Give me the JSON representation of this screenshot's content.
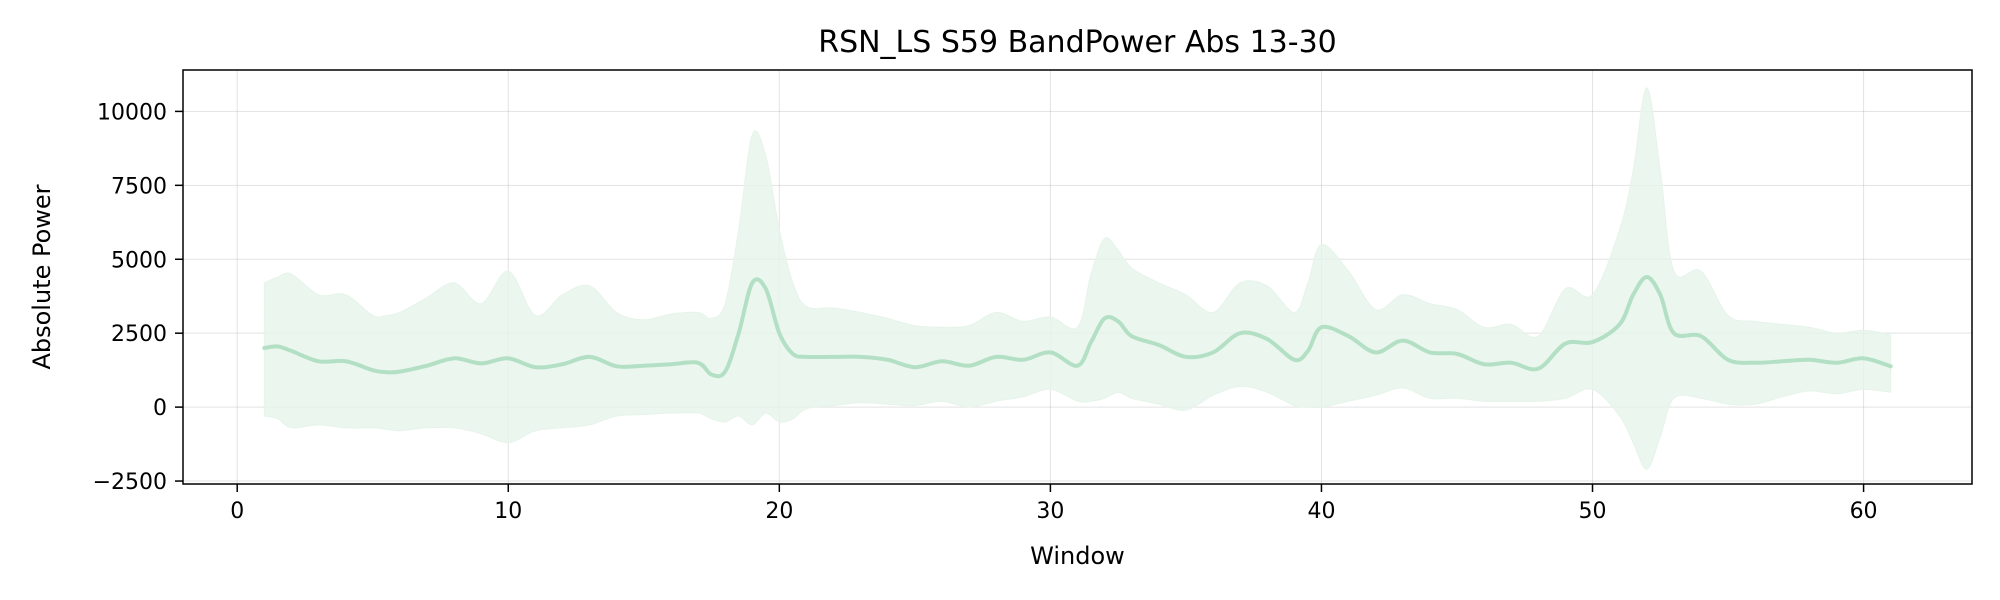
{
  "chart_data": {
    "type": "line",
    "title": "RSN_LS S59 BandPower Abs 13-30",
    "xlabel": "Window",
    "ylabel": "Absolute Power",
    "xlim": [
      -2,
      64
    ],
    "ylim": [
      -2600,
      11400
    ],
    "xticks": [
      0,
      10,
      20,
      30,
      40,
      50,
      60
    ],
    "xtick_labels": [
      "0",
      "10",
      "20",
      "30",
      "40",
      "50",
      "60"
    ],
    "yticks": [
      -2500,
      0,
      2500,
      5000,
      7500,
      10000
    ],
    "ytick_labels": [
      "−2500",
      "0",
      "2500",
      "5000",
      "7500",
      "10000"
    ],
    "grid": true,
    "series_color": "#b3e0c4",
    "band_color": "#e6f4ea",
    "series": [
      {
        "x": [
          1,
          1.5,
          2,
          3,
          4,
          5,
          5.5,
          6,
          7,
          8,
          9,
          10,
          11,
          12,
          13,
          14,
          15,
          16,
          17,
          17.5,
          18,
          18.5,
          19,
          19.5,
          20,
          20.5,
          21,
          22,
          23,
          24,
          25,
          26,
          27,
          28,
          29,
          30,
          31,
          31.5,
          32,
          32.5,
          33,
          34,
          35,
          36,
          37,
          38,
          39,
          39.5,
          40,
          41,
          42,
          43,
          44,
          45,
          46,
          47,
          48,
          49,
          50,
          51,
          51.5,
          52,
          52.5,
          53,
          54,
          55,
          56,
          57,
          58,
          59,
          60,
          61
        ],
        "mean": [
          2000,
          2050,
          1900,
          1550,
          1550,
          1250,
          1180,
          1200,
          1400,
          1650,
          1480,
          1650,
          1350,
          1450,
          1700,
          1380,
          1400,
          1450,
          1500,
          1100,
          1200,
          2500,
          4200,
          4000,
          2500,
          1800,
          1700,
          1700,
          1700,
          1600,
          1350,
          1550,
          1400,
          1700,
          1600,
          1850,
          1400,
          2200,
          3000,
          2900,
          2400,
          2100,
          1700,
          1850,
          2500,
          2300,
          1600,
          1900,
          2700,
          2400,
          1850,
          2250,
          1850,
          1800,
          1450,
          1500,
          1300,
          2150,
          2200,
          2800,
          3800,
          4400,
          3800,
          2500,
          2400,
          1600,
          1500,
          1550,
          1600,
          1500,
          1650,
          1380
        ],
        "upper": [
          4200,
          4400,
          4500,
          3800,
          3800,
          3100,
          3100,
          3200,
          3700,
          4200,
          3500,
          4600,
          3100,
          3800,
          4100,
          3200,
          2950,
          3150,
          3200,
          3000,
          3500,
          6000,
          9200,
          8500,
          6000,
          4200,
          3400,
          3350,
          3200,
          3000,
          2750,
          2700,
          2750,
          3200,
          2900,
          3050,
          2700,
          4500,
          5700,
          5300,
          4700,
          4200,
          3800,
          3200,
          4200,
          4100,
          3200,
          4200,
          5500,
          4600,
          3300,
          3800,
          3500,
          3300,
          2700,
          2800,
          2400,
          4000,
          3800,
          6000,
          8000,
          10800,
          8000,
          4600,
          4600,
          3100,
          2900,
          2800,
          2700,
          2500,
          2600,
          2450
        ],
        "lower": [
          -300,
          -400,
          -700,
          -600,
          -700,
          -700,
          -750,
          -800,
          -700,
          -700,
          -900,
          -1200,
          -800,
          -700,
          -600,
          -300,
          -250,
          -200,
          -200,
          -400,
          -500,
          -300,
          -600,
          -200,
          -500,
          -400,
          -50,
          50,
          150,
          100,
          50,
          200,
          0,
          200,
          350,
          600,
          200,
          200,
          300,
          500,
          300,
          100,
          -100,
          400,
          700,
          500,
          50,
          0,
          0,
          200,
          400,
          650,
          300,
          300,
          200,
          200,
          200,
          300,
          600,
          -300,
          -1200,
          -2100,
          -1000,
          300,
          300,
          100,
          100,
          350,
          550,
          450,
          600,
          500
        ]
      }
    ]
  }
}
